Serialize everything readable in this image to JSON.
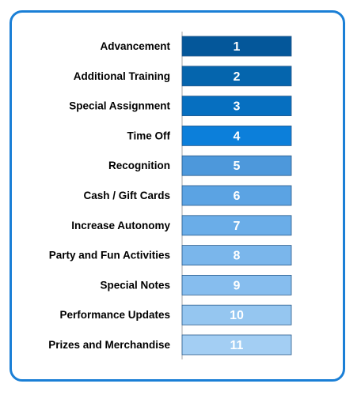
{
  "chart_data": {
    "type": "table",
    "title": "",
    "categories": [
      "Advancement",
      "Additional Training",
      "Special Assignment",
      "Time Off",
      "Recognition",
      "Cash / Gift Cards",
      "Increase Autonomy",
      "Party and Fun Activities",
      "Special Notes",
      "Performance Updates",
      "Prizes and Merchandise"
    ],
    "values": [
      1,
      2,
      3,
      4,
      5,
      6,
      7,
      8,
      9,
      10,
      11
    ],
    "colors": [
      "#04579a",
      "#0565ad",
      "#066fc0",
      "#0c7fda",
      "#4d98db",
      "#5ba3e3",
      "#6aade8",
      "#7ab6eb",
      "#86bdee",
      "#95c6f0",
      "#a3cef3"
    ],
    "frame_color": "#1a7fd6"
  }
}
